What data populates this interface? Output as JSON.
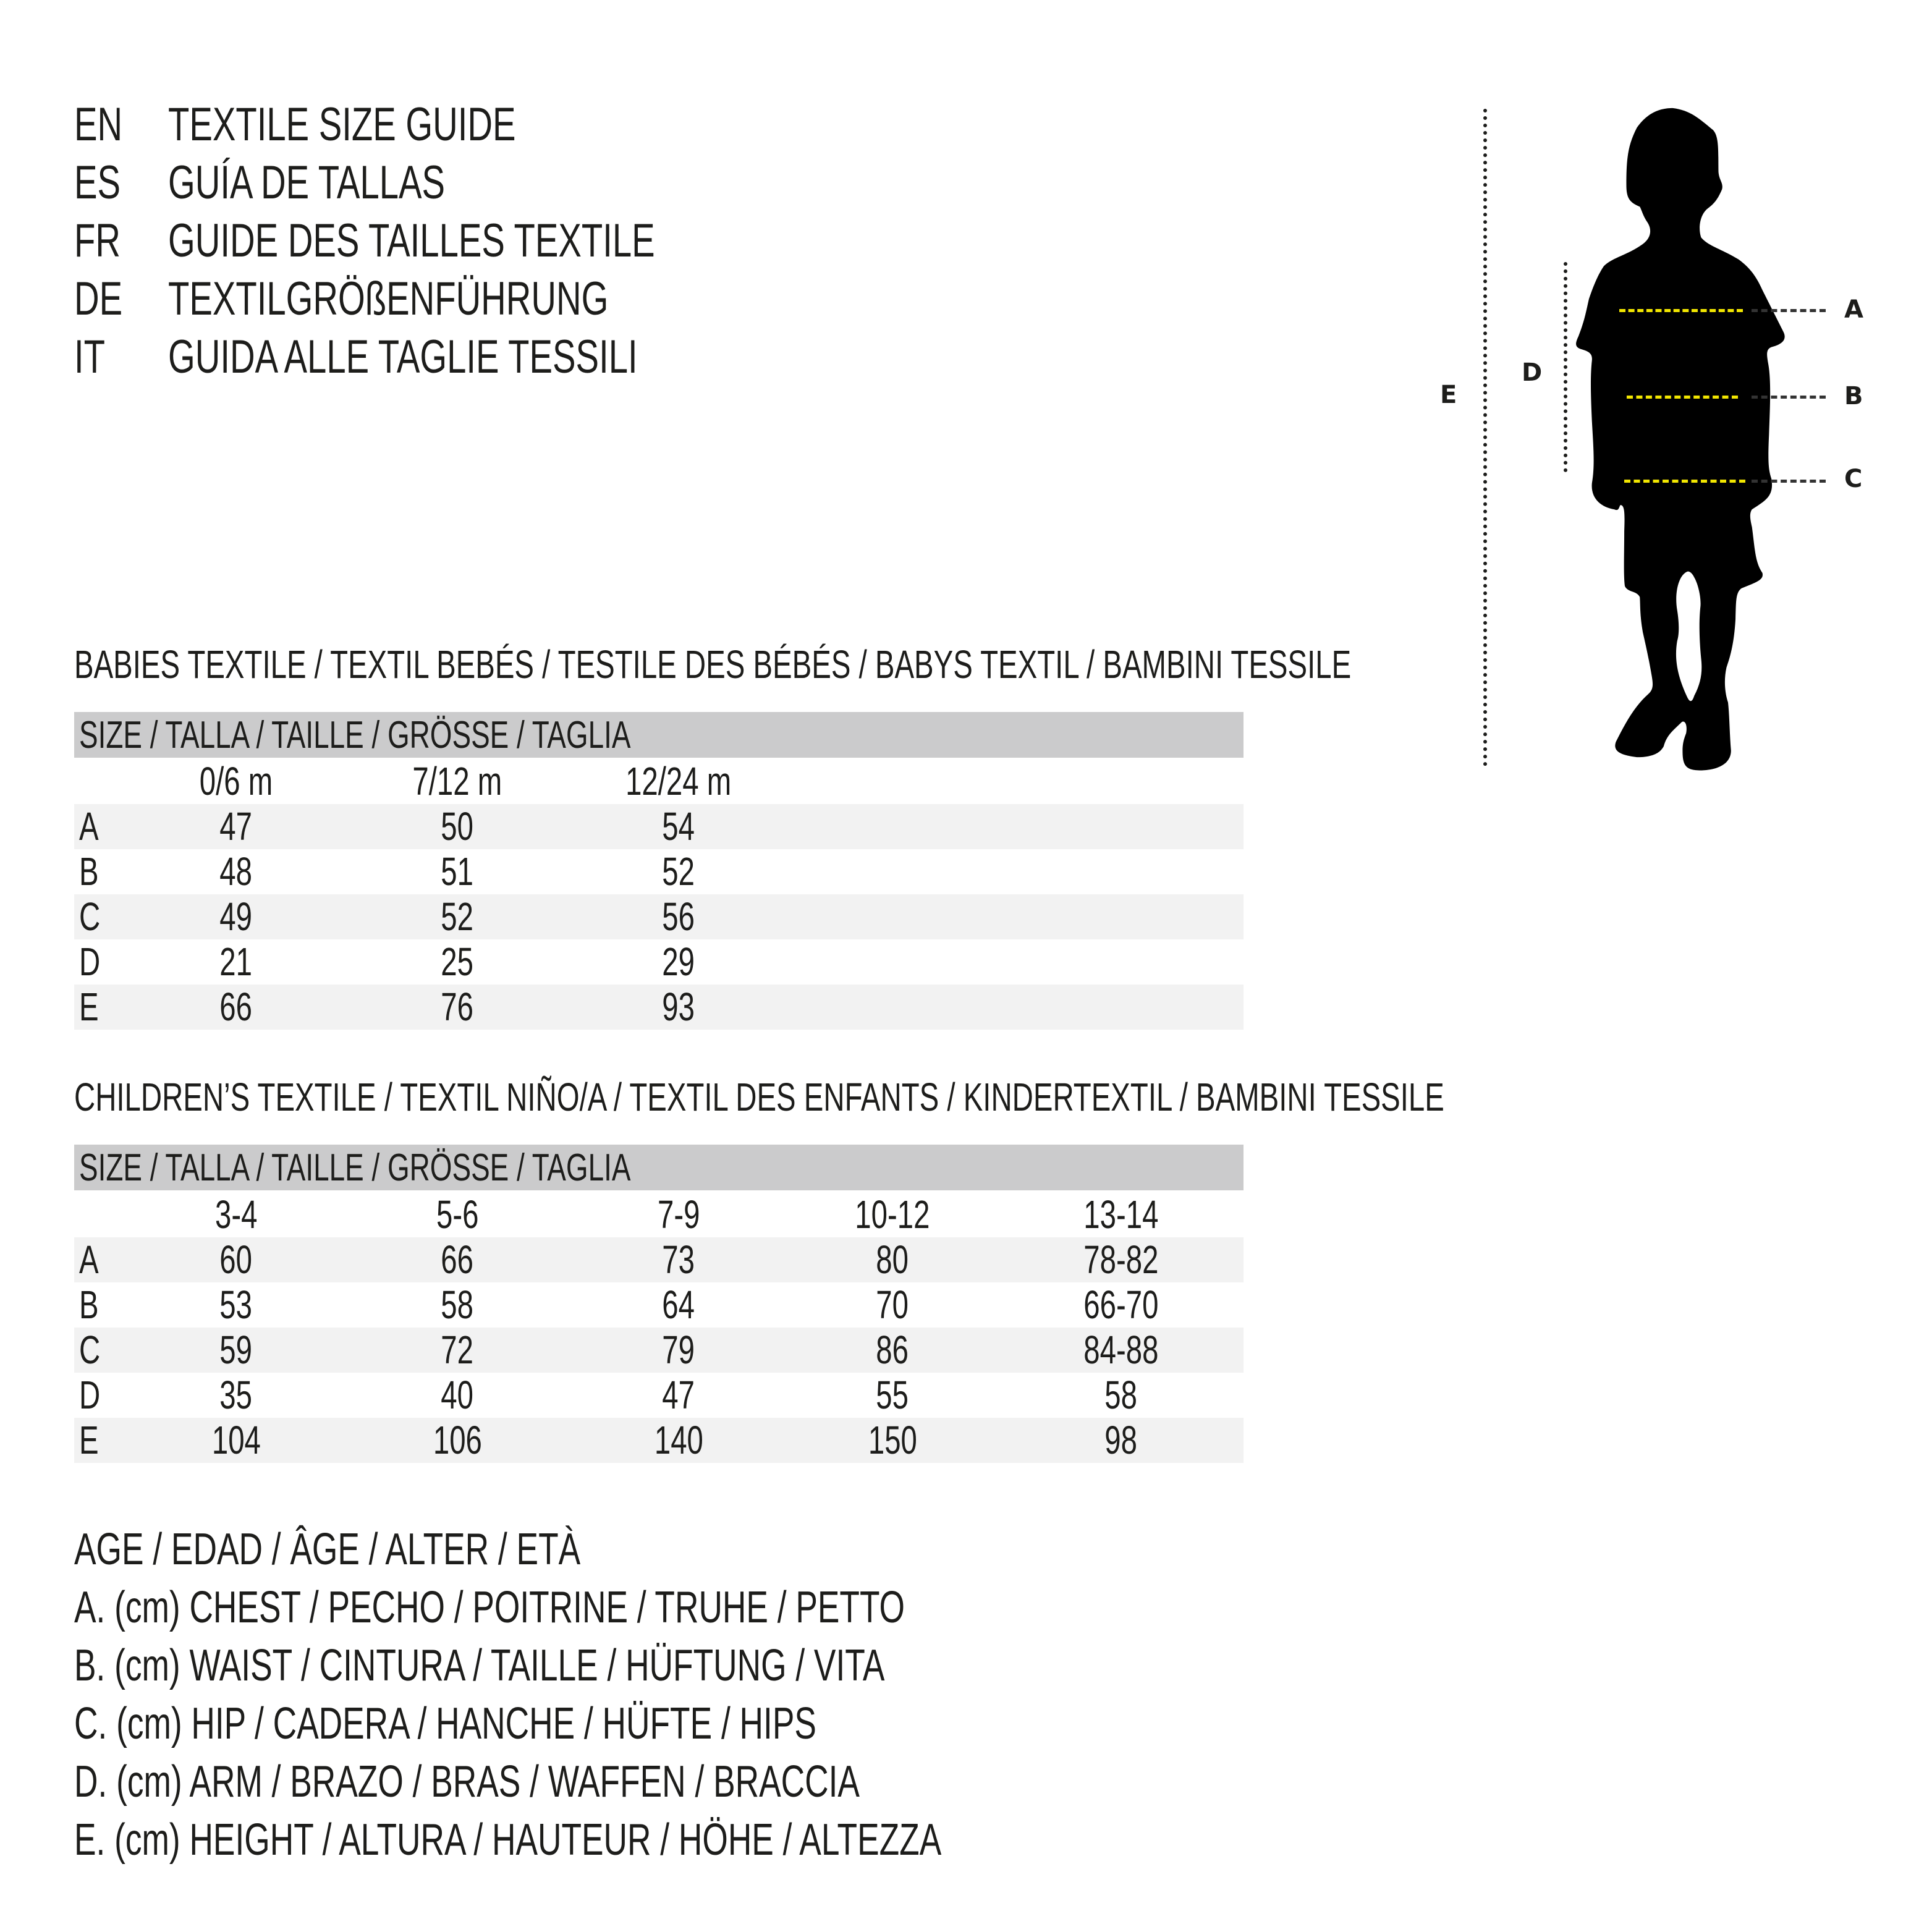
{
  "header": {
    "lines": [
      {
        "code": "EN",
        "title": "TEXTILE SIZE GUIDE"
      },
      {
        "code": "ES",
        "title": "GUÍA DE TALLAS"
      },
      {
        "code": "FR",
        "title": "GUIDE DES TAILLES TEXTILE"
      },
      {
        "code": "DE",
        "title": "TEXTILGRÖßENFÜHRUNG"
      },
      {
        "code": "IT",
        "title": "GUIDA ALLE TAGLIE TESSILI"
      }
    ]
  },
  "figure": {
    "labels": {
      "a": "A",
      "b": "B",
      "c": "C",
      "d": "D",
      "e": "E"
    },
    "accent_color": "#f2e600"
  },
  "babies": {
    "title": "BABIES TEXTILE / TEXTIL BEBÉS / TESTILE DES BÉBÉS / BABYS TEXTIL / BAMBINI TESSILE",
    "size_header": "SIZE / TALLA / TAILLE / GRÖSSE / TAGLIA",
    "columns": [
      "0/6 m",
      "7/12 m",
      "12/24 m"
    ],
    "rows": [
      {
        "label": "A",
        "values": [
          "47",
          "50",
          "54"
        ]
      },
      {
        "label": "B",
        "values": [
          "48",
          "51",
          "52"
        ]
      },
      {
        "label": "C",
        "values": [
          "49",
          "52",
          "56"
        ]
      },
      {
        "label": "D",
        "values": [
          "21",
          "25",
          "29"
        ]
      },
      {
        "label": "E",
        "values": [
          "66",
          "76",
          "93"
        ]
      }
    ]
  },
  "children": {
    "title": "CHILDREN’S TEXTILE / TEXTIL NIÑO/A / TEXTIL DES ENFANTS / KINDERTEXTIL / BAMBINI TESSILE",
    "size_header": "SIZE / TALLA / TAILLE / GRÖSSE / TAGLIA",
    "columns": [
      "3-4",
      "5-6",
      "7-9",
      "10-12",
      "13-14"
    ],
    "rows": [
      {
        "label": "A",
        "values": [
          "60",
          "66",
          "73",
          "80",
          "78-82"
        ]
      },
      {
        "label": "B",
        "values": [
          "53",
          "58",
          "64",
          "70",
          "66-70"
        ]
      },
      {
        "label": "C",
        "values": [
          "59",
          "72",
          "79",
          "86",
          "84-88"
        ]
      },
      {
        "label": "D",
        "values": [
          "35",
          "40",
          "47",
          "55",
          "58"
        ]
      },
      {
        "label": "E",
        "values": [
          "104",
          "106",
          "140",
          "150",
          "98"
        ]
      }
    ]
  },
  "legend": [
    "AGE / EDAD / ÂGE / ALTER / ETÀ",
    "A. (cm) CHEST / PECHO / POITRINE / TRUHE / PETTO",
    "B. (cm) WAIST / CINTURA / TAILLE / HÜFTUNG / VITA",
    "C. (cm) HIP / CADERA / HANCHE / HÜFTE / HIPS",
    "D. (cm) ARM / BRAZO / BRAS / WAFFEN / BRACCIA",
    "E. (cm) HEIGHT / ALTURA / HAUTEUR / HÖHE / ALTEZZA"
  ]
}
